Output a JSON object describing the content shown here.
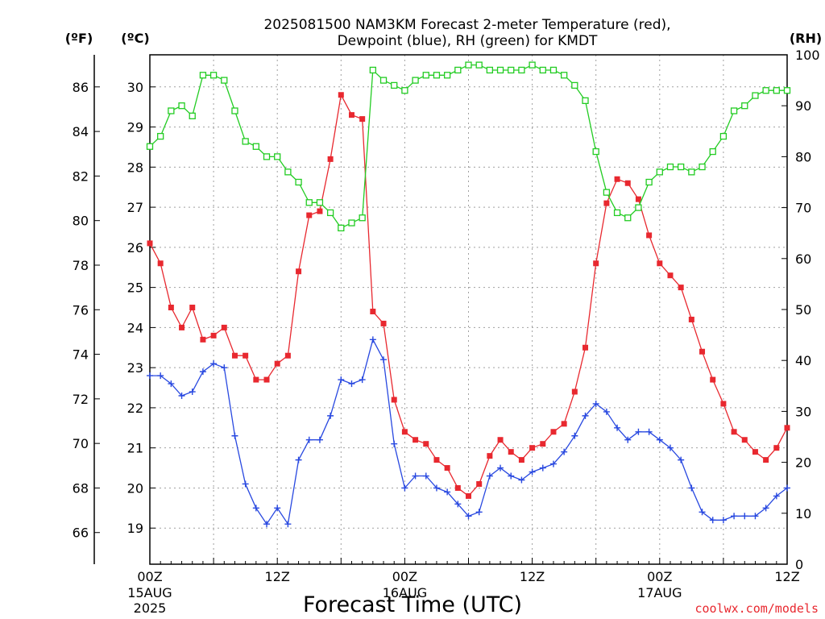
{
  "chart_data": {
    "type": "line",
    "title_line1": "2025081500 NAM3KM Forecast 2-meter Temperature (red),",
    "title_line2": "Dewpoint (blue), RH (green) for KMDT",
    "unit_f": "(ºF)",
    "unit_c": "(ºC)",
    "unit_rh": "(RH)",
    "xlabel": "Forecast Time (UTC)",
    "watermark": "coolwx.com/models",
    "x_start_hour": 0,
    "x_end_hour": 60,
    "x_ticks": [
      {
        "hour": 0,
        "label": "00Z",
        "sub": [
          "15AUG",
          "2025"
        ]
      },
      {
        "hour": 12,
        "label": "12Z",
        "sub": []
      },
      {
        "hour": 24,
        "label": "00Z",
        "sub": [
          "16AUG"
        ]
      },
      {
        "hour": 36,
        "label": "12Z",
        "sub": []
      },
      {
        "hour": 48,
        "label": "00Z",
        "sub": [
          "17AUG"
        ]
      },
      {
        "hour": 60,
        "label": "12Z",
        "sub": []
      }
    ],
    "ylim_c": [
      18.1,
      30.8
    ],
    "y_ticks_c": [
      19,
      20,
      21,
      22,
      23,
      24,
      25,
      26,
      27,
      28,
      29,
      30
    ],
    "y_ticks_f": [
      66,
      68,
      70,
      72,
      74,
      76,
      78,
      80,
      82,
      84,
      86
    ],
    "ylim_rh": [
      0,
      100
    ],
    "y_ticks_rh": [
      0,
      10,
      20,
      30,
      40,
      50,
      60,
      70,
      80,
      90,
      100
    ],
    "grid": true,
    "series": [
      {
        "name": "Temperature",
        "axis": "c",
        "color": "#e8282f",
        "marker": "filled-square",
        "values": [
          26.1,
          25.6,
          24.5,
          24.0,
          24.5,
          23.7,
          23.8,
          24.0,
          23.3,
          23.3,
          22.7,
          22.7,
          23.1,
          23.3,
          25.4,
          26.8,
          26.9,
          28.2,
          29.8,
          29.3,
          29.2,
          24.4,
          24.1,
          22.2,
          21.4,
          21.2,
          21.1,
          20.7,
          20.5,
          20.0,
          19.8,
          20.1,
          20.8,
          21.2,
          20.9,
          20.7,
          21.0,
          21.1,
          21.4,
          21.6,
          22.4,
          23.5,
          25.6,
          27.1,
          27.7,
          27.6,
          27.2,
          26.3,
          25.6,
          25.3,
          25.0,
          24.2,
          23.4,
          22.7,
          22.1,
          21.4,
          21.2,
          20.9,
          20.7,
          21.0,
          21.5
        ]
      },
      {
        "name": "Dewpoint",
        "axis": "c",
        "color": "#2848e0",
        "marker": "plus",
        "values": [
          22.8,
          22.8,
          22.6,
          22.3,
          22.4,
          22.9,
          23.1,
          23.0,
          21.3,
          20.1,
          19.5,
          19.1,
          19.5,
          19.1,
          20.7,
          21.2,
          21.2,
          21.8,
          22.7,
          22.6,
          22.7,
          23.7,
          23.2,
          21.1,
          20.0,
          20.3,
          20.3,
          20.0,
          19.9,
          19.6,
          19.3,
          19.4,
          20.3,
          20.5,
          20.3,
          20.2,
          20.4,
          20.5,
          20.6,
          20.9,
          21.3,
          21.8,
          22.1,
          21.9,
          21.5,
          21.2,
          21.4,
          21.4,
          21.2,
          21.0,
          20.7,
          20.0,
          19.4,
          19.2,
          19.2,
          19.3,
          19.3,
          19.3,
          19.5,
          19.8,
          20.0
        ]
      },
      {
        "name": "RH",
        "axis": "rh",
        "color": "#22cc22",
        "marker": "open-square",
        "values": [
          82,
          84,
          89,
          90,
          88,
          96,
          96,
          95,
          89,
          83,
          82,
          80,
          80,
          77,
          75,
          71,
          71,
          69,
          66,
          67,
          68,
          97,
          95,
          94,
          93,
          95,
          96,
          96,
          96,
          97,
          98,
          98,
          97,
          97,
          97,
          97,
          98,
          97,
          97,
          96,
          94,
          91,
          81,
          73,
          69,
          68,
          70,
          75,
          77,
          78,
          78,
          77,
          78,
          81,
          84,
          89,
          90,
          92,
          93,
          93,
          93
        ]
      }
    ]
  }
}
